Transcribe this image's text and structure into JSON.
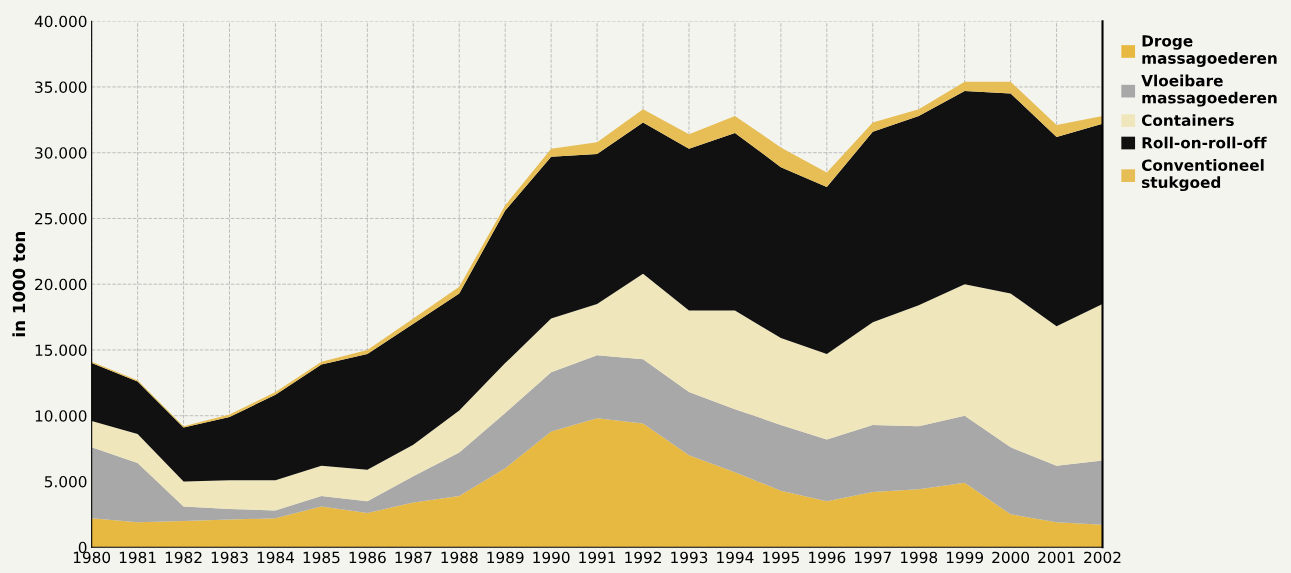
{
  "chart_data": {
    "type": "area",
    "stacked": true,
    "ylabel": "in 1000 ton",
    "x": [
      1980,
      1981,
      1982,
      1983,
      1984,
      1985,
      1986,
      1987,
      1988,
      1989,
      1990,
      1991,
      1992,
      1993,
      1994,
      1995,
      1996,
      1997,
      1998,
      1999,
      2000,
      2001,
      2002
    ],
    "xlim": [
      1980,
      2002
    ],
    "xticks": [
      1980,
      1981,
      1982,
      1983,
      1984,
      1985,
      1986,
      1987,
      1988,
      1989,
      1990,
      1991,
      1992,
      1993,
      1994,
      1995,
      1996,
      1997,
      1998,
      1999,
      2000,
      2001,
      2002
    ],
    "ylim": [
      0,
      40000
    ],
    "yticks": [
      0,
      {
        "value": 5000,
        "label": "5.000"
      },
      {
        "value": 10000,
        "label": "10.000"
      },
      {
        "value": 15000,
        "label": "15.000"
      },
      {
        "value": 20000,
        "label": "20.000"
      },
      {
        "value": 25000,
        "label": "25.000"
      },
      {
        "value": 30000,
        "label": "30.000"
      },
      {
        "value": 35000,
        "label": "35.000"
      },
      {
        "value": 40000,
        "label": "40.000"
      }
    ],
    "grid": true,
    "legend": "right",
    "series": [
      {
        "name": "Droge massagoederen",
        "color": "#e8b940",
        "values": [
          2200,
          1900,
          2000,
          2100,
          2200,
          3100,
          2600,
          3400,
          3900,
          6000,
          8800,
          9800,
          9400,
          7000,
          5700,
          4300,
          3500,
          4200,
          4400,
          4900,
          2500,
          1900,
          1700
        ]
      },
      {
        "name": "Vloeibare massagoederen",
        "color": "#a8a8a8",
        "values": [
          5400,
          4500,
          1100,
          800,
          600,
          800,
          900,
          2000,
          3300,
          4200,
          4500,
          4800,
          4900,
          4800,
          4800,
          5000,
          4700,
          5100,
          4800,
          5100,
          5100,
          4300,
          4900
        ]
      },
      {
        "name": "Containers",
        "color": "#f0e6bb",
        "values": [
          2000,
          2200,
          1900,
          2200,
          2300,
          2300,
          2400,
          2400,
          3200,
          3800,
          4100,
          3900,
          6500,
          6200,
          7500,
          6600,
          6500,
          7800,
          9200,
          10000,
          11700,
          10600,
          11900
        ]
      },
      {
        "name": "Roll-on-roll-off",
        "color": "#111111",
        "values": [
          4400,
          4000,
          4100,
          4800,
          6500,
          7700,
          8800,
          9200,
          8900,
          11600,
          12300,
          11400,
          11500,
          12300,
          13500,
          13000,
          12700,
          14500,
          14400,
          14700,
          15200,
          14400,
          13700
        ]
      },
      {
        "name": "Conventioneel stukgoed",
        "color": "#e6be55",
        "values": [
          100,
          100,
          100,
          200,
          200,
          200,
          300,
          400,
          500,
          400,
          600,
          900,
          1000,
          1100,
          1300,
          1500,
          1100,
          700,
          500,
          700,
          900,
          900,
          600
        ]
      }
    ]
  }
}
